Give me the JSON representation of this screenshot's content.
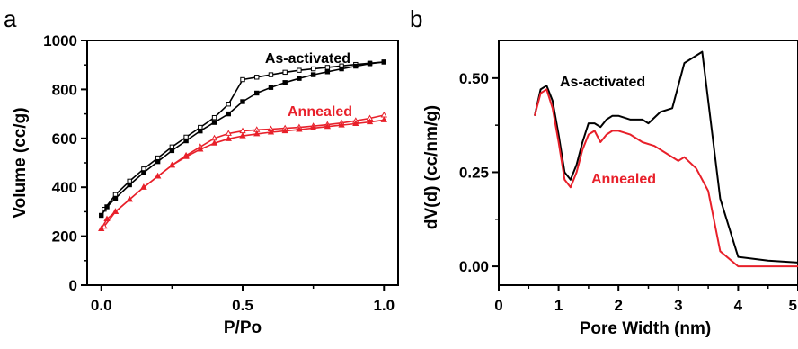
{
  "chart_data": [
    {
      "panel": "a",
      "type": "line",
      "title": "",
      "xlabel": "P/Po",
      "ylabel": "Volume (cc/g)",
      "xlim": [
        -0.05,
        1.05
      ],
      "ylim": [
        0,
        1000
      ],
      "xticks": [
        "0.0",
        "0.5",
        "1.0"
      ],
      "yticks": [
        "0",
        "200",
        "400",
        "600",
        "800",
        "1000"
      ],
      "grid": false,
      "legend": "none",
      "series": [
        {
          "name": "As-activated",
          "color": "#000000",
          "marker": "square-open",
          "x": [
            0.01,
            0.05,
            0.1,
            0.15,
            0.2,
            0.25,
            0.3,
            0.35,
            0.4,
            0.45,
            0.5,
            0.55,
            0.6,
            0.65,
            0.7,
            0.75,
            0.8,
            0.85,
            0.9,
            0.95,
            1.0
          ],
          "y": [
            310,
            370,
            425,
            475,
            520,
            565,
            605,
            645,
            685,
            740,
            840,
            850,
            860,
            870,
            878,
            884,
            890,
            896,
            902,
            907,
            912
          ]
        },
        {
          "name": "",
          "color": "#000000",
          "marker": "square-filled",
          "x": [
            0.0,
            0.02,
            0.05,
            0.1,
            0.15,
            0.2,
            0.25,
            0.3,
            0.35,
            0.4,
            0.45,
            0.5,
            0.55,
            0.6,
            0.65,
            0.7,
            0.75,
            0.8,
            0.85,
            0.9,
            0.95,
            1.0
          ],
          "y": [
            285,
            320,
            355,
            410,
            460,
            505,
            550,
            590,
            630,
            665,
            700,
            750,
            785,
            808,
            828,
            845,
            860,
            872,
            884,
            895,
            905,
            912
          ]
        },
        {
          "name": "Annealed",
          "color": "#e8202a",
          "marker": "triangle-open",
          "x": [
            0.01,
            0.05,
            0.1,
            0.15,
            0.2,
            0.25,
            0.3,
            0.35,
            0.4,
            0.45,
            0.5,
            0.55,
            0.6,
            0.65,
            0.7,
            0.75,
            0.8,
            0.85,
            0.9,
            0.95,
            1.0
          ],
          "y": [
            240,
            300,
            350,
            400,
            445,
            490,
            530,
            565,
            600,
            620,
            630,
            635,
            638,
            641,
            645,
            650,
            656,
            663,
            672,
            682,
            695
          ]
        },
        {
          "name": "",
          "color": "#e8202a",
          "marker": "triangle-filled",
          "x": [
            0.0,
            0.02,
            0.05,
            0.1,
            0.15,
            0.2,
            0.25,
            0.3,
            0.35,
            0.4,
            0.45,
            0.5,
            0.55,
            0.6,
            0.65,
            0.7,
            0.75,
            0.8,
            0.85,
            0.9,
            0.95,
            1.0
          ],
          "y": [
            230,
            270,
            300,
            350,
            400,
            445,
            490,
            525,
            555,
            580,
            598,
            610,
            618,
            625,
            630,
            636,
            642,
            648,
            654,
            660,
            667,
            675
          ]
        }
      ]
    },
    {
      "panel": "b",
      "type": "line",
      "title": "",
      "xlabel": "Pore Width (nm)",
      "ylabel": "dV(d) (cc/nm/g)",
      "xlim": [
        0,
        5
      ],
      "ylim": [
        -0.05,
        0.6
      ],
      "xticks": [
        "0",
        "1",
        "2",
        "3",
        "4",
        "5"
      ],
      "yticks": [
        "0.00",
        "0.25",
        "0.50"
      ],
      "grid": false,
      "legend": "none",
      "series": [
        {
          "name": "As-activated",
          "color": "#000000",
          "x": [
            0.6,
            0.7,
            0.8,
            0.9,
            1.0,
            1.1,
            1.2,
            1.3,
            1.4,
            1.5,
            1.6,
            1.7,
            1.8,
            1.9,
            2.0,
            2.2,
            2.4,
            2.5,
            2.7,
            2.9,
            3.1,
            3.4,
            3.7,
            4.0,
            4.5,
            5.0
          ],
          "y": [
            0.4,
            0.47,
            0.48,
            0.44,
            0.35,
            0.25,
            0.23,
            0.27,
            0.33,
            0.38,
            0.38,
            0.37,
            0.39,
            0.4,
            0.4,
            0.39,
            0.39,
            0.38,
            0.41,
            0.42,
            0.54,
            0.57,
            0.18,
            0.025,
            0.015,
            0.01
          ]
        },
        {
          "name": "Annealed",
          "color": "#e8202a",
          "x": [
            0.6,
            0.7,
            0.8,
            0.9,
            1.0,
            1.1,
            1.2,
            1.3,
            1.4,
            1.5,
            1.6,
            1.7,
            1.8,
            1.9,
            2.0,
            2.2,
            2.4,
            2.6,
            2.8,
            3.0,
            3.1,
            3.3,
            3.5,
            3.7,
            4.0,
            4.5,
            5.0
          ],
          "y": [
            0.4,
            0.46,
            0.47,
            0.42,
            0.33,
            0.23,
            0.21,
            0.25,
            0.31,
            0.35,
            0.36,
            0.33,
            0.35,
            0.36,
            0.36,
            0.35,
            0.33,
            0.32,
            0.3,
            0.28,
            0.29,
            0.26,
            0.2,
            0.04,
            0.0,
            0.0,
            0.0
          ]
        }
      ]
    }
  ]
}
